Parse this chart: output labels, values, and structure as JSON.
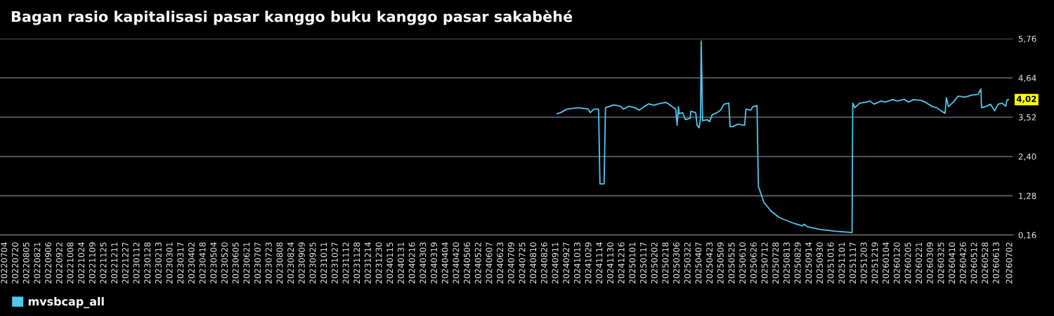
{
  "chart_data": {
    "type": "line",
    "title": "Bagan rasio kapitalisasi pasar kanggo buku kanggo pasar sakabèhé",
    "x": [
      "2024-09-13",
      "2024-09-18",
      "2024-09-27",
      "2024-10-14",
      "2024-10-28",
      "2024-10-31",
      "2024-11-05",
      "2024-11-12",
      "2024-11-14",
      "2024-11-20",
      "2024-11-22",
      "2024-12-04",
      "2024-12-14",
      "2024-12-18",
      "2024-12-26",
      "2025-01-04",
      "2025-01-10",
      "2025-01-17",
      "2025-01-24",
      "2025-01-31",
      "2025-02-07",
      "2025-02-17",
      "2025-02-20",
      "2025-02-27",
      "2025-03-04",
      "2025-03-06",
      "2025-03-08",
      "2025-03-09",
      "2025-03-14",
      "2025-03-18",
      "2025-03-25",
      "2025-03-26",
      "2025-04-02",
      "2025-04-04",
      "2025-04-07",
      "2025-04-09",
      "2025-04-10",
      "2025-04-12",
      "2025-04-19",
      "2025-04-22",
      "2025-04-26",
      "2025-05-03",
      "2025-05-08",
      "2025-05-13",
      "2025-05-20",
      "2025-05-22",
      "2025-05-26",
      "2025-06-02",
      "2025-06-12",
      "2025-06-14",
      "2025-06-21",
      "2025-06-24",
      "2025-06-30",
      "2025-07-02",
      "2025-07-10",
      "2025-07-20",
      "2025-07-31",
      "2025-08-06",
      "2025-08-23",
      "2025-09-04",
      "2025-09-06",
      "2025-09-12",
      "2025-09-29",
      "2025-10-20",
      "2025-11-02",
      "2025-11-15",
      "2025-11-16",
      "2025-11-19",
      "2025-11-26",
      "2025-12-06",
      "2025-12-11",
      "2025-12-17",
      "2025-12-27",
      "2026-01-02",
      "2026-01-13",
      "2026-01-20",
      "2026-01-30",
      "2026-02-05",
      "2026-02-12",
      "2026-02-23",
      "2026-03-01",
      "2026-03-12",
      "2026-03-18",
      "2026-03-25",
      "2026-03-30",
      "2026-04-01",
      "2026-04-04",
      "2026-04-11",
      "2026-04-18",
      "2026-04-28",
      "2026-05-08",
      "2026-05-17",
      "2026-05-21",
      "2026-05-22",
      "2026-05-29",
      "2026-06-04",
      "2026-06-10",
      "2026-06-15",
      "2026-06-21",
      "2026-06-26",
      "2026-06-28",
      "2026-06-30"
    ],
    "series": [
      {
        "name": "mvsbcap_all",
        "color": "#50c8f0",
        "values": [
          3.62,
          3.65,
          3.75,
          3.79,
          3.75,
          3.65,
          3.75,
          3.75,
          1.62,
          1.62,
          3.79,
          3.87,
          3.83,
          3.75,
          3.83,
          3.79,
          3.72,
          3.82,
          3.9,
          3.86,
          3.9,
          3.94,
          3.92,
          3.82,
          3.75,
          3.29,
          3.82,
          3.62,
          3.65,
          3.45,
          3.49,
          3.69,
          3.65,
          3.29,
          3.22,
          3.49,
          5.69,
          3.42,
          3.45,
          3.39,
          3.59,
          3.65,
          3.72,
          3.89,
          3.92,
          3.25,
          3.25,
          3.32,
          3.29,
          3.75,
          3.72,
          3.82,
          3.85,
          1.55,
          1.09,
          0.85,
          0.68,
          0.62,
          0.49,
          0.42,
          0.47,
          0.39,
          0.32,
          0.27,
          0.25,
          0.23,
          3.92,
          3.79,
          3.92,
          3.95,
          3.98,
          3.89,
          3.98,
          3.95,
          4.02,
          3.98,
          4.03,
          3.95,
          4.02,
          4.0,
          3.95,
          3.82,
          3.79,
          3.69,
          3.63,
          4.07,
          3.82,
          3.95,
          4.12,
          4.09,
          4.15,
          4.17,
          4.32,
          3.79,
          3.83,
          3.89,
          3.7,
          3.89,
          3.92,
          3.83,
          4.01,
          4.02
        ]
      }
    ],
    "xlim": [
      "2022-06-27",
      "2026-07-07"
    ],
    "xticks": [
      {
        "value": "2022-07-04",
        "label": "20220704"
      },
      {
        "value": "2022-07-20",
        "label": "20220720"
      },
      {
        "value": "2022-08-05",
        "label": "20220805"
      },
      {
        "value": "2022-08-21",
        "label": "20220821"
      },
      {
        "value": "2022-09-06",
        "label": "20220906"
      },
      {
        "value": "2022-09-22",
        "label": "20220922"
      },
      {
        "value": "2022-10-08",
        "label": "20221008"
      },
      {
        "value": "2022-10-24",
        "label": "20221024"
      },
      {
        "value": "2022-11-09",
        "label": "20221109"
      },
      {
        "value": "2022-11-25",
        "label": "20221125"
      },
      {
        "value": "2022-12-11",
        "label": "20221211"
      },
      {
        "value": "2022-12-27",
        "label": "20221227"
      },
      {
        "value": "2023-01-12",
        "label": "20230112"
      },
      {
        "value": "2023-01-28",
        "label": "20230128"
      },
      {
        "value": "2023-02-13",
        "label": "20230213"
      },
      {
        "value": "2023-03-01",
        "label": "20230301"
      },
      {
        "value": "2023-03-17",
        "label": "20230317"
      },
      {
        "value": "2023-04-02",
        "label": "20230402"
      },
      {
        "value": "2023-04-18",
        "label": "20230418"
      },
      {
        "value": "2023-05-04",
        "label": "20230504"
      },
      {
        "value": "2023-05-20",
        "label": "20230520"
      },
      {
        "value": "2023-06-05",
        "label": "20230605"
      },
      {
        "value": "2023-06-21",
        "label": "20230621"
      },
      {
        "value": "2023-07-07",
        "label": "20230707"
      },
      {
        "value": "2023-07-23",
        "label": "20230723"
      },
      {
        "value": "2023-08-08",
        "label": "20230808"
      },
      {
        "value": "2023-08-24",
        "label": "20230824"
      },
      {
        "value": "2023-09-09",
        "label": "20230909"
      },
      {
        "value": "2023-09-25",
        "label": "20230925"
      },
      {
        "value": "2023-10-11",
        "label": "20231011"
      },
      {
        "value": "2023-10-27",
        "label": "20231027"
      },
      {
        "value": "2023-11-12",
        "label": "20231112"
      },
      {
        "value": "2023-11-28",
        "label": "20231128"
      },
      {
        "value": "2023-12-14",
        "label": "20231214"
      },
      {
        "value": "2023-12-30",
        "label": "20231230"
      },
      {
        "value": "2024-01-15",
        "label": "20240115"
      },
      {
        "value": "2024-01-31",
        "label": "20240131"
      },
      {
        "value": "2024-02-16",
        "label": "20240216"
      },
      {
        "value": "2024-03-03",
        "label": "20240303"
      },
      {
        "value": "2024-03-19",
        "label": "20240319"
      },
      {
        "value": "2024-04-04",
        "label": "20240404"
      },
      {
        "value": "2024-04-20",
        "label": "20240420"
      },
      {
        "value": "2024-05-06",
        "label": "20240506"
      },
      {
        "value": "2024-05-22",
        "label": "20240522"
      },
      {
        "value": "2024-06-07",
        "label": "20240607"
      },
      {
        "value": "2024-06-23",
        "label": "20240623"
      },
      {
        "value": "2024-07-09",
        "label": "20240709"
      },
      {
        "value": "2024-07-25",
        "label": "20240725"
      },
      {
        "value": "2024-08-10",
        "label": "20240810"
      },
      {
        "value": "2024-08-26",
        "label": "20240826"
      },
      {
        "value": "2024-09-11",
        "label": "20240911"
      },
      {
        "value": "2024-09-27",
        "label": "20240927"
      },
      {
        "value": "2024-10-13",
        "label": "20241013"
      },
      {
        "value": "2024-10-29",
        "label": "20241029"
      },
      {
        "value": "2024-11-14",
        "label": "20241114"
      },
      {
        "value": "2024-11-30",
        "label": "20241130"
      },
      {
        "value": "2024-12-16",
        "label": "20241216"
      },
      {
        "value": "2025-01-01",
        "label": "20250101"
      },
      {
        "value": "2025-01-17",
        "label": "20250117"
      },
      {
        "value": "2025-02-02",
        "label": "20250202"
      },
      {
        "value": "2025-02-18",
        "label": "20250218"
      },
      {
        "value": "2025-03-06",
        "label": "20250306"
      },
      {
        "value": "2025-03-22",
        "label": "20250322"
      },
      {
        "value": "2025-04-07",
        "label": "20250407"
      },
      {
        "value": "2025-04-23",
        "label": "20250423"
      },
      {
        "value": "2025-05-09",
        "label": "20250509"
      },
      {
        "value": "2025-05-25",
        "label": "20250525"
      },
      {
        "value": "2025-06-10",
        "label": "20250610"
      },
      {
        "value": "2025-06-26",
        "label": "20250626"
      },
      {
        "value": "2025-07-12",
        "label": "20250712"
      },
      {
        "value": "2025-07-28",
        "label": "20250728"
      },
      {
        "value": "2025-08-13",
        "label": "20250813"
      },
      {
        "value": "2025-08-29",
        "label": "20250829"
      },
      {
        "value": "2025-09-14",
        "label": "20250914"
      },
      {
        "value": "2025-09-30",
        "label": "20250930"
      },
      {
        "value": "2025-10-16",
        "label": "20251016"
      },
      {
        "value": "2025-11-01",
        "label": "20251101"
      },
      {
        "value": "2025-11-17",
        "label": "20251117"
      },
      {
        "value": "2025-12-03",
        "label": "20251203"
      },
      {
        "value": "2025-12-19",
        "label": "20251219"
      },
      {
        "value": "2026-01-04",
        "label": "20260104"
      },
      {
        "value": "2026-01-20",
        "label": "20260120"
      },
      {
        "value": "2026-02-05",
        "label": "20260205"
      },
      {
        "value": "2026-02-21",
        "label": "20260221"
      },
      {
        "value": "2026-03-09",
        "label": "20260309"
      },
      {
        "value": "2026-03-25",
        "label": "20260325"
      },
      {
        "value": "2026-04-10",
        "label": "20260410"
      },
      {
        "value": "2026-04-26",
        "label": "20260426"
      },
      {
        "value": "2026-05-12",
        "label": "20260512"
      },
      {
        "value": "2026-05-28",
        "label": "20260528"
      },
      {
        "value": "2026-06-13",
        "label": "20260613"
      },
      {
        "value": "2026-07-02",
        "label": "20260702"
      }
    ],
    "ylim": [
      0.16,
      5.76
    ],
    "yticks": [
      {
        "value": 0.16,
        "label": "0,16"
      },
      {
        "value": 1.28,
        "label": "1,28"
      },
      {
        "value": 2.4,
        "label": "2,40"
      },
      {
        "value": 3.52,
        "label": "3,52"
      },
      {
        "value": 4.64,
        "label": "4,64"
      },
      {
        "value": 5.76,
        "label": "5,76"
      }
    ],
    "annotations": [
      {
        "text": "4,02",
        "x": "2026-06-30",
        "y": 4.02
      }
    ],
    "grid": "y",
    "legend": "bottom left",
    "line_style": "solid"
  }
}
